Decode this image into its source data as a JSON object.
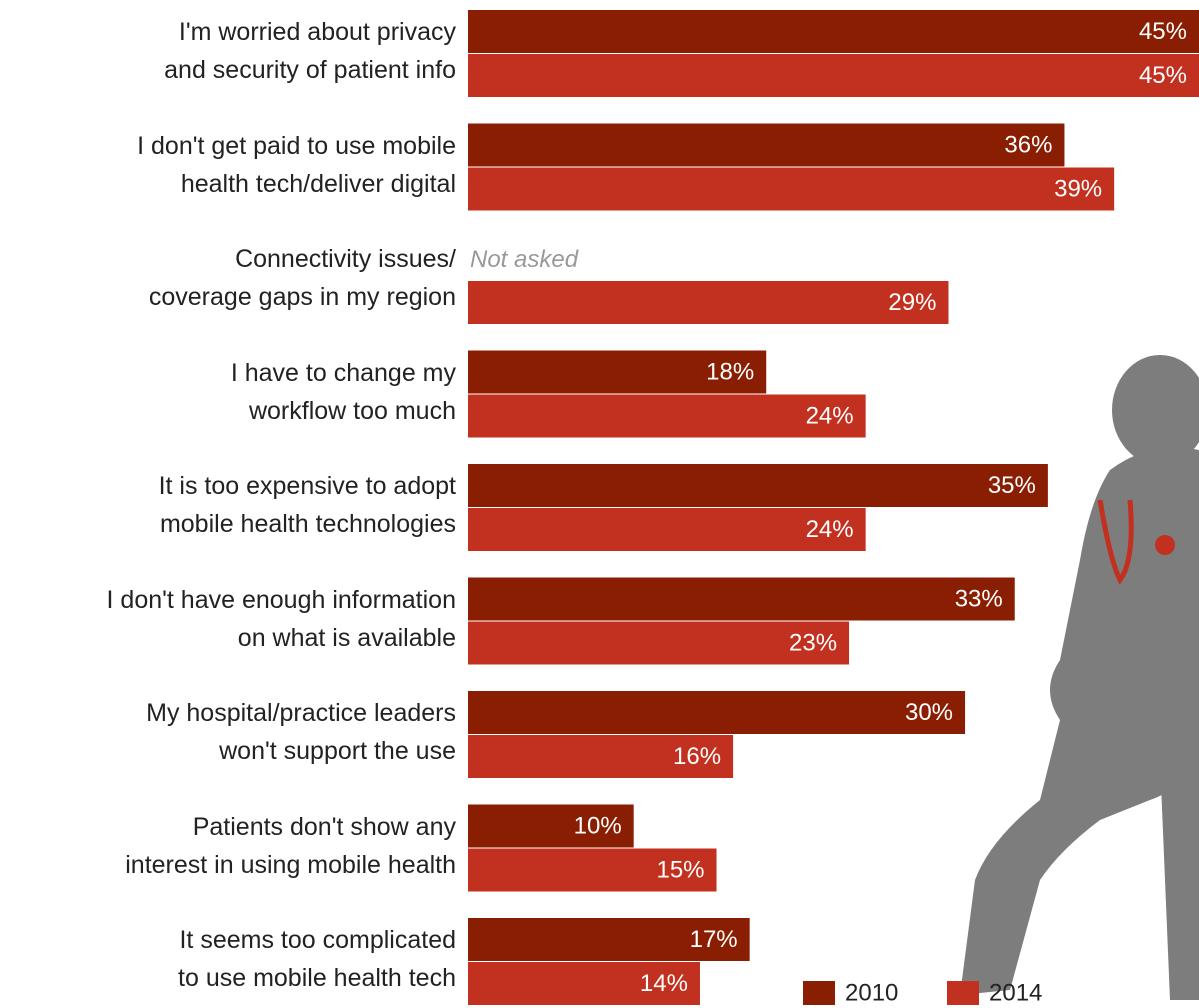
{
  "chart_data": {
    "type": "bar",
    "orientation": "horizontal",
    "categories": [
      "I'm worried about privacy\nand security of patient info",
      "I don't get paid to use mobile\nhealth tech/deliver digital",
      "Connectivity issues/\ncoverage gaps in my region",
      "I have to change my\nworkflow too much",
      "It is too expensive to adopt\nmobile health technologies",
      "I don't have enough information\non what is available",
      "My hospital/practice leaders\nwon't support the use",
      "Patients don't show any\ninterest in using mobile health",
      "It seems too complicated\nto use mobile health tech"
    ],
    "series": [
      {
        "name": "2010",
        "color": "#8a1e02",
        "values": [
          45,
          36,
          null,
          18,
          35,
          33,
          30,
          10,
          17
        ],
        "value_labels": [
          "45%",
          "36%",
          null,
          "18%",
          "35%",
          "33%",
          "30%",
          "10%",
          "17%"
        ]
      },
      {
        "name": "2014",
        "color": "#c2301f",
        "values": [
          45,
          39,
          29,
          24,
          24,
          23,
          16,
          15,
          14
        ],
        "value_labels": [
          "45%",
          "39%",
          "29%",
          "24%",
          "24%",
          "23%",
          "16%",
          "15%",
          "14%"
        ]
      }
    ],
    "missing_label": "Not asked",
    "xlim": [
      0,
      44
    ],
    "grid": false,
    "legend": "bottom-right"
  }
}
